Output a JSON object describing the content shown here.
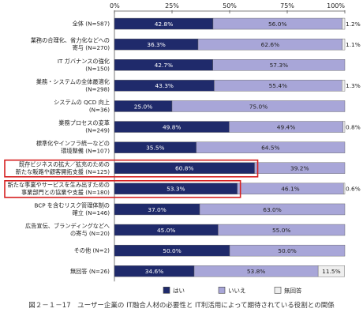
{
  "caption": "図２－１－17　ユーザー企業の IT融合人材の必要性と IT利活用によって期待されている役割との関係",
  "chart_data": {
    "type": "bar",
    "orientation": "horizontal",
    "stacked": true,
    "normalized": true,
    "xlim": [
      0,
      100
    ],
    "x_ticks": [
      "0%",
      "25%",
      "50%",
      "75%",
      "100%"
    ],
    "grid": false,
    "legend_position": "bottom",
    "categories": [
      [
        "全体 (N=587)"
      ],
      [
        "業務の合理化、省力化などへの",
        "寄与 (N=270)"
      ],
      [
        "IT ガバナンスの強化",
        "(N=150)"
      ],
      [
        "業務・システムの全体最適化",
        "(N=298)"
      ],
      [
        "システムの QCD 向上",
        "(N=36)"
      ],
      [
        "業務プロセスの変革",
        "(N=249)"
      ],
      [
        "標準化やインフラ統一などの",
        "環境整備 (N=107)"
      ],
      [
        "既存ビジネスの拡大／拡充のための",
        "新たな販路や顧客開拓支援 (N=125)"
      ],
      [
        "新たな事業やサービスを生み出すための",
        "事業部門との協業や支援 (N=180)"
      ],
      [
        "BCP を含むリスク管理体制の",
        "確立 (N=146)"
      ],
      [
        "広告宣伝、ブランディングなどへ",
        "の寄与 (N=20)"
      ],
      [
        "その他 (N=2)"
      ],
      [
        "無回答 (N=26)"
      ]
    ],
    "highlighted_categories": [
      7,
      8
    ],
    "series": [
      {
        "name": "はい",
        "color": "#1f2a6b",
        "values": [
          42.8,
          36.3,
          42.7,
          43.3,
          25.0,
          49.8,
          35.5,
          60.8,
          53.3,
          37.0,
          45.0,
          50.0,
          34.6
        ],
        "labels": [
          "42.8%",
          "36.3%",
          "42.7%",
          "43.3%",
          "25.0%",
          "49.8%",
          "35.5%",
          "60.8%",
          "53.3%",
          "37.0%",
          "45.0%",
          "50.0%",
          "34.6%"
        ]
      },
      {
        "name": "いいえ",
        "color": "#a8a6d8",
        "values": [
          56.0,
          62.6,
          57.3,
          55.4,
          75.0,
          49.4,
          64.5,
          39.2,
          46.1,
          63.0,
          55.0,
          50.0,
          53.8
        ],
        "labels": [
          "56.0%",
          "62.6%",
          "57.3%",
          "55.4%",
          "75.0%",
          "49.4%",
          "64.5%",
          "39.2%",
          "46.1%",
          "63.0%",
          "55.0%",
          "50.0%",
          "53.8%"
        ]
      },
      {
        "name": "無回答",
        "color": "#eeeeee",
        "values": [
          1.2,
          1.1,
          0.0,
          1.3,
          0.0,
          0.8,
          0.0,
          0.0,
          0.6,
          0.0,
          0.0,
          0.0,
          11.5
        ],
        "labels": [
          "1.2%",
          "1.1%",
          "",
          "1.3%",
          "",
          "0.8%",
          "",
          "",
          "0.6%",
          "",
          "",
          "",
          "11.5%"
        ]
      }
    ]
  },
  "colors": {
    "highlight_box": "#d62020",
    "axis": "#555555"
  }
}
